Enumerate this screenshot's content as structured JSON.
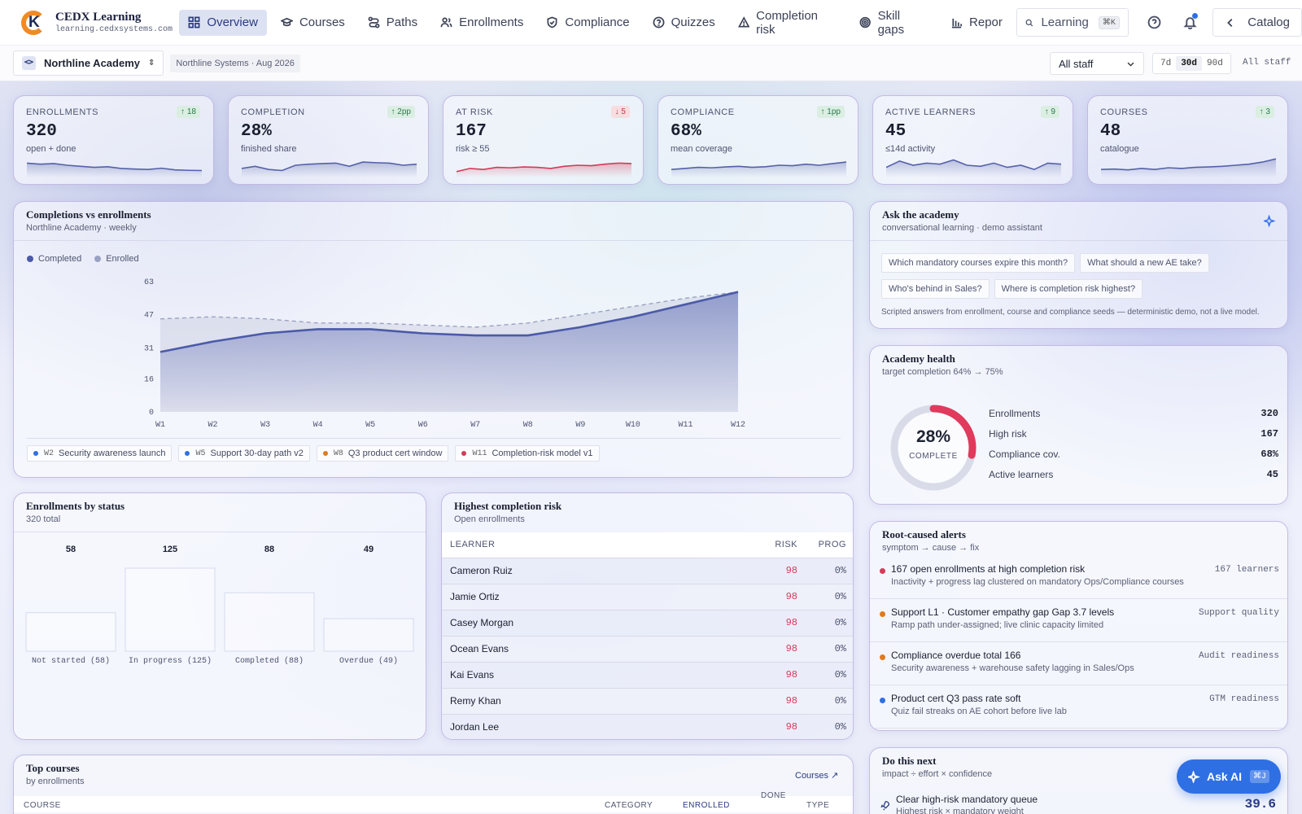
{
  "brand": {
    "title": "CEDX Learning",
    "url": "learning.cedxsystems.com"
  },
  "nav": [
    {
      "label": "Overview",
      "icon": "grid-icon",
      "active": true
    },
    {
      "label": "Courses",
      "icon": "mortarboard-icon"
    },
    {
      "label": "Paths",
      "icon": "route-icon"
    },
    {
      "label": "Enrollments",
      "icon": "users-icon"
    },
    {
      "label": "Compliance",
      "icon": "shield-icon"
    },
    {
      "label": "Quizzes",
      "icon": "help-circle-icon"
    },
    {
      "label": "Completion risk",
      "icon": "warning-icon"
    },
    {
      "label": "Skill gaps",
      "icon": "target-icon"
    },
    {
      "label": "Repor",
      "icon": "bar-chart-icon"
    }
  ],
  "search": {
    "placeholder": "Learning",
    "kbd": "⌘K"
  },
  "catalog_label": "Catalog",
  "subbar": {
    "org": "Northline Academy",
    "context": "Northline Systems · Aug 2026",
    "staff": "All staff",
    "ranges": [
      "7d",
      "30d",
      "90d"
    ],
    "range_active": "30d",
    "scope": "All staff"
  },
  "kpis": [
    {
      "label": "ENROLLMENTS",
      "value": "320",
      "sub": "open + done",
      "delta": "↑ 18",
      "dir": "up",
      "spark": [
        0.6,
        0.55,
        0.58,
        0.5,
        0.45,
        0.4,
        0.43,
        0.35,
        0.32,
        0.3,
        0.36,
        0.28,
        0.26,
        0.25
      ],
      "color": "#5561a8"
    },
    {
      "label": "COMPLETION",
      "value": "28%",
      "sub": "finished share",
      "delta": "↑ 2pp",
      "dir": "up",
      "spark": [
        0.35,
        0.45,
        0.3,
        0.25,
        0.5,
        0.55,
        0.58,
        0.6,
        0.45,
        0.65,
        0.62,
        0.6,
        0.5,
        0.55
      ],
      "color": "#5561a8"
    },
    {
      "label": "AT RISK",
      "value": "167",
      "sub": "risk ≥ 55",
      "delta": "↓ 5",
      "dir": "down",
      "spark": [
        0.2,
        0.35,
        0.3,
        0.4,
        0.38,
        0.42,
        0.4,
        0.35,
        0.45,
        0.5,
        0.48,
        0.55,
        0.6,
        0.58
      ],
      "color": "#d33b58"
    },
    {
      "label": "COMPLIANCE",
      "value": "68%",
      "sub": "mean coverage",
      "delta": "↑ 1pp",
      "dir": "up",
      "spark": [
        0.3,
        0.35,
        0.4,
        0.38,
        0.42,
        0.45,
        0.4,
        0.43,
        0.5,
        0.48,
        0.55,
        0.5,
        0.58,
        0.65
      ],
      "color": "#5561a8"
    },
    {
      "label": "ACTIVE LEARNERS",
      "value": "45",
      "sub": "≤14d activity",
      "delta": "↑ 9",
      "dir": "up",
      "spark": [
        0.4,
        0.7,
        0.5,
        0.6,
        0.55,
        0.75,
        0.5,
        0.45,
        0.6,
        0.4,
        0.5,
        0.3,
        0.6,
        0.55
      ],
      "color": "#5561a8"
    },
    {
      "label": "COURSES",
      "value": "48",
      "sub": "catalogue",
      "delta": "↑ 3",
      "dir": "up",
      "spark": [
        0.3,
        0.32,
        0.28,
        0.35,
        0.3,
        0.38,
        0.35,
        0.4,
        0.42,
        0.45,
        0.5,
        0.55,
        0.65,
        0.8
      ],
      "color": "#5561a8"
    }
  ],
  "trend": {
    "title": "Completions vs enrollments",
    "subtitle": "Northline Academy · weekly",
    "legend": [
      {
        "name": "Completed",
        "color": "#4b5aa8"
      },
      {
        "name": "Enrolled",
        "color": "#9aa2c2"
      }
    ]
  },
  "chart_data": {
    "type": "area",
    "x": [
      "W1",
      "W2",
      "W3",
      "W4",
      "W5",
      "W6",
      "W7",
      "W8",
      "W9",
      "W10",
      "W11",
      "W12"
    ],
    "yticks": [
      0,
      16,
      31,
      47,
      63
    ],
    "ylim": [
      0,
      63
    ],
    "series": [
      {
        "name": "Completed",
        "values": [
          29,
          34,
          38,
          40,
          40,
          38,
          37,
          37,
          41,
          46,
          52,
          58
        ]
      },
      {
        "name": "Enrolled",
        "values": [
          45,
          46,
          45,
          43,
          43,
          42,
          41,
          43,
          47,
          51,
          55,
          58
        ]
      }
    ]
  },
  "events": [
    {
      "week": "W2",
      "label": "Security awareness launch",
      "color": "#2f6fe4"
    },
    {
      "week": "W5",
      "label": "Support 30-day path v2",
      "color": "#2f6fe4"
    },
    {
      "week": "W8",
      "label": "Q3 product cert window",
      "color": "#e07a1c"
    },
    {
      "week": "W11",
      "label": "Completion-risk model v1",
      "color": "#d33b58"
    }
  ],
  "status": {
    "title": "Enrollments by status",
    "subtitle": "320 total",
    "bars": [
      {
        "label": "Not started (58)",
        "value": 58
      },
      {
        "label": "In progress (125)",
        "value": 125
      },
      {
        "label": "Completed (88)",
        "value": 88
      },
      {
        "label": "Overdue (49)",
        "value": 49
      }
    ]
  },
  "risk": {
    "title": "Highest completion risk",
    "subtitle": "Open enrollments",
    "cols": [
      "LEARNER",
      "RISK",
      "PROG"
    ],
    "rows": [
      [
        "Cameron Ruiz",
        "98",
        "0%"
      ],
      [
        "Jamie Ortiz",
        "98",
        "0%"
      ],
      [
        "Casey Morgan",
        "98",
        "0%"
      ],
      [
        "Ocean Evans",
        "98",
        "0%"
      ],
      [
        "Kai Evans",
        "98",
        "0%"
      ],
      [
        "Remy Khan",
        "98",
        "0%"
      ],
      [
        "Jordan Lee",
        "98",
        "0%"
      ]
    ]
  },
  "ask": {
    "title": "Ask the academy",
    "subtitle": "conversational learning · demo assistant",
    "chips": [
      "Which mandatory courses expire this month?",
      "What should a new AE take?",
      "Who's behind in Sales?",
      "Where is completion risk highest?"
    ],
    "note": "Scripted answers from enrollment, course and compliance seeds — deterministic demo, not a live model."
  },
  "health": {
    "title": "Academy health",
    "subtitle": "target completion 64% → 75%",
    "pct": "28%",
    "pct_value": 0.28,
    "pct_label": "COMPLETE",
    "rows": [
      [
        "Enrollments",
        "320"
      ],
      [
        "High risk",
        "167"
      ],
      [
        "Compliance cov.",
        "68%"
      ],
      [
        "Active learners",
        "45"
      ]
    ]
  },
  "alerts": {
    "title": "Root-caused alerts",
    "subtitle": "symptom → cause → fix",
    "items": [
      {
        "t": "167 open enrollments at high completion risk",
        "s": "Inactivity + progress lag clustered on mandatory Ops/Compliance courses",
        "tag": "167 learners",
        "color": "#d33b58"
      },
      {
        "t": "Support L1 · Customer empathy gap Gap 3.7 levels",
        "s": "Ramp path under-assigned; live clinic capacity limited",
        "tag": "Support quality",
        "color": "#e07a1c"
      },
      {
        "t": "Compliance overdue total 166",
        "s": "Security awareness + warehouse safety lagging in Sales/Ops",
        "tag": "Audit readiness",
        "color": "#e07a1c"
      },
      {
        "t": "Product cert Q3 pass rate soft",
        "s": "Quiz fail streaks on AE cohort before live lab",
        "tag": "GTM readiness",
        "color": "#2f6fe4"
      }
    ]
  },
  "top": {
    "title": "Top courses",
    "subtitle": "by enrollments",
    "link": "Courses ↗",
    "cols": [
      "COURSE",
      "CATEGORY",
      "ENROLLED",
      "DONE",
      "TYPE"
    ]
  },
  "next": {
    "title": "Do this next",
    "subtitle": "impact ÷ effort × confidence",
    "item": "Clear high-risk mandatory queue",
    "item_sub": "Highest risk × mandatory weight",
    "score": "39.6"
  },
  "askai": {
    "label": "Ask AI",
    "kbd": "⌘J"
  }
}
